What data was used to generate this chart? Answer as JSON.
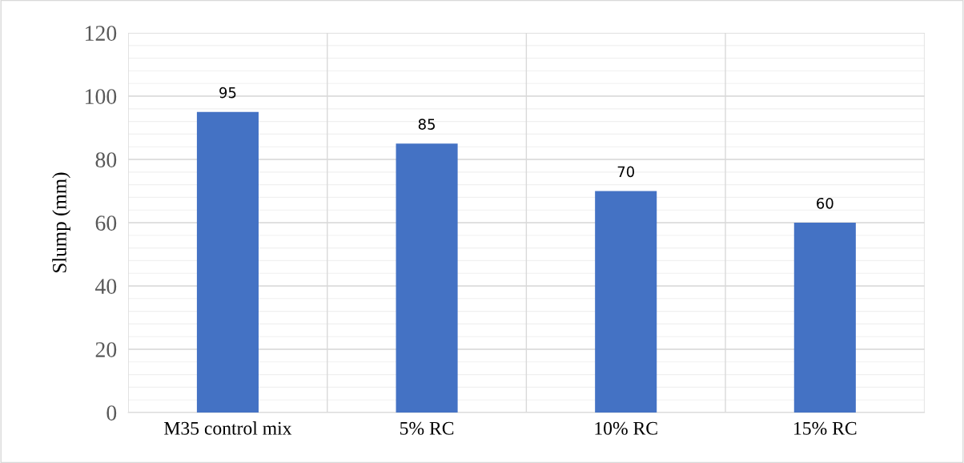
{
  "chart_data": {
    "type": "bar",
    "ylabel": "Slump (mm)",
    "categories": [
      "M35 control mix",
      "5% RC",
      "10% RC",
      "15% RC"
    ],
    "values": [
      95,
      85,
      70,
      60
    ],
    "color": "#4472c4",
    "ylim": [
      0,
      120
    ],
    "yticks": [
      0,
      20,
      40,
      60,
      80,
      100,
      120
    ],
    "grid": true,
    "data_labels": true
  }
}
